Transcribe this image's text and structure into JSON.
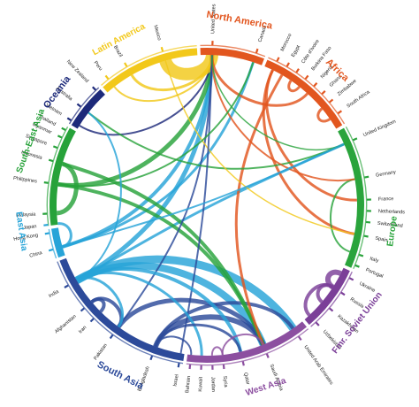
{
  "regions": [
    {
      "label": "North America",
      "color": "#e2561f",
      "start": 357,
      "end": 22,
      "label_angle": 10,
      "label_size": 11
    },
    {
      "label": "Africa",
      "color": "#e2561f",
      "start": 22,
      "end": 60,
      "label_angle": 44,
      "label_size": 11
    },
    {
      "label": "Europe",
      "color": "#2aa43c",
      "start": 60,
      "end": 114,
      "label_angle": 98,
      "label_size": 10
    },
    {
      "label": "Fmr. Soviet Union",
      "color": "#7b3f98",
      "start": 114,
      "end": 140,
      "label_angle": 128,
      "label_size": 10
    },
    {
      "label": "West Asia",
      "color": "#8c4fa0",
      "start": 140,
      "end": 188,
      "label_angle": 162,
      "label_size": 10
    },
    {
      "label": "South Asia",
      "color": "#2c4a9a",
      "start": 188,
      "end": 250,
      "label_angle": 207,
      "label_size": 11
    },
    {
      "label": "East Asia",
      "color": "#27a4d8",
      "start": 250,
      "end": 262,
      "label_angle": 262,
      "label_size": 10
    },
    {
      "label": "South-East Asia",
      "color": "#27a23a",
      "start": 262,
      "end": 300,
      "label_angle": 290,
      "label_size": 10
    },
    {
      "label": "Oceania",
      "color": "#1d2a7a",
      "start": 300,
      "end": 318,
      "label_angle": 307,
      "label_size": 11
    },
    {
      "label": "Latin America",
      "color": "#f2c81a",
      "start": 318,
      "end": 357,
      "label_angle": 332,
      "label_size": 10
    }
  ],
  "countries": [
    {
      "label": "United States",
      "angle": 2,
      "color": "#e2561f"
    },
    {
      "label": "Canada",
      "angle": 18,
      "color": "#e2561f"
    },
    {
      "label": "Morocco",
      "angle": 26,
      "color": "#e2561f"
    },
    {
      "label": "Egypt",
      "angle": 30,
      "color": "#e2561f"
    },
    {
      "label": "Côte d'Ivoire",
      "angle": 34,
      "color": "#e2561f"
    },
    {
      "label": "Burkina Faso",
      "angle": 38,
      "color": "#e2561f"
    },
    {
      "label": "Nigeria",
      "angle": 42,
      "color": "#e2561f"
    },
    {
      "label": "Ghana",
      "angle": 46,
      "color": "#e2561f"
    },
    {
      "label": "Zimbabwe",
      "angle": 50,
      "color": "#e2561f"
    },
    {
      "label": "South Africa",
      "angle": 55,
      "color": "#e2561f"
    },
    {
      "label": "United Kingdom",
      "angle": 66,
      "color": "#2aa43c"
    },
    {
      "label": "Germany",
      "angle": 80,
      "color": "#2aa43c"
    },
    {
      "label": "France",
      "angle": 88,
      "color": "#2aa43c"
    },
    {
      "label": "Netherlands",
      "angle": 92,
      "color": "#2aa43c"
    },
    {
      "label": "Switzerland",
      "angle": 96,
      "color": "#2aa43c"
    },
    {
      "label": "Spain",
      "angle": 101,
      "color": "#2aa43c"
    },
    {
      "label": "Italy",
      "angle": 108,
      "color": "#2aa43c"
    },
    {
      "label": "Portugal",
      "angle": 112,
      "color": "#2aa43c"
    },
    {
      "label": "Ukraine",
      "angle": 117,
      "color": "#7b3f98"
    },
    {
      "label": "Russia",
      "angle": 123,
      "color": "#7b3f98"
    },
    {
      "label": "Kazakhstan",
      "angle": 130,
      "color": "#7b3f98"
    },
    {
      "label": "Uzbekistan",
      "angle": 137,
      "color": "#7b3f98"
    },
    {
      "label": "United Arab Emirates",
      "angle": 145,
      "color": "#8c4fa0"
    },
    {
      "label": "Saudi Arabia",
      "angle": 158,
      "color": "#8c4fa0"
    },
    {
      "label": "Qatar",
      "angle": 167,
      "color": "#8c4fa0"
    },
    {
      "label": "Syria",
      "angle": 174,
      "color": "#8c4fa0"
    },
    {
      "label": "Jordan",
      "angle": 178,
      "color": "#8c4fa0"
    },
    {
      "label": "Kuwait",
      "angle": 182,
      "color": "#8c4fa0"
    },
    {
      "label": "Bahrain",
      "angle": 186,
      "color": "#8c4fa0"
    },
    {
      "label": "Israel",
      "angle": 190,
      "color": "#2c4a9a"
    },
    {
      "label": "Bangladesh",
      "angle": 200,
      "color": "#2c4a9a"
    },
    {
      "label": "Pakistan",
      "angle": 216,
      "color": "#2c4a9a"
    },
    {
      "label": "Iran",
      "angle": 225,
      "color": "#2c4a9a"
    },
    {
      "label": "Afghanistan",
      "angle": 230,
      "color": "#2c4a9a"
    },
    {
      "label": "India",
      "angle": 240,
      "color": "#2c4a9a"
    },
    {
      "label": "China",
      "angle": 254,
      "color": "#27a4d8"
    },
    {
      "label": "Hong Kong",
      "angle": 260,
      "color": "#27a4d8"
    },
    {
      "label": "Japan",
      "angle": 263,
      "color": "#27a4d8"
    },
    {
      "label": "Malaysia",
      "angle": 267,
      "color": "#27a23a"
    },
    {
      "label": "Philippines",
      "angle": 278,
      "color": "#27a23a"
    },
    {
      "label": "Indonesia",
      "angle": 286,
      "color": "#27a23a"
    },
    {
      "label": "Singapore",
      "angle": 291,
      "color": "#27a23a"
    },
    {
      "label": "Myanmar",
      "angle": 295,
      "color": "#27a23a"
    },
    {
      "label": "Thailand",
      "angle": 298,
      "color": "#27a23a"
    },
    {
      "label": "Vietnam",
      "angle": 302,
      "color": "#1d2a7a"
    },
    {
      "label": "Australia",
      "angle": 308,
      "color": "#1d2a7a"
    },
    {
      "label": "New Zealand",
      "angle": 316,
      "color": "#1d2a7a"
    },
    {
      "label": "Peru",
      "angle": 322,
      "color": "#f2c81a"
    },
    {
      "label": "Brazil",
      "angle": 330,
      "color": "#f2c81a"
    },
    {
      "label": "Mexico",
      "angle": 344,
      "color": "#f2c81a"
    }
  ],
  "flows": [
    {
      "from": 240,
      "to": 145,
      "width": 9,
      "color": "#27a4d8"
    },
    {
      "from": 240,
      "to": 158,
      "width": 8,
      "color": "#27a4d8"
    },
    {
      "from": 200,
      "to": 158,
      "width": 6,
      "color": "#2c4a9a"
    },
    {
      "from": 216,
      "to": 158,
      "width": 5,
      "color": "#2c4a9a"
    },
    {
      "from": 200,
      "to": 145,
      "width": 4,
      "color": "#2c4a9a"
    },
    {
      "from": 240,
      "to": 2,
      "width": 5,
      "color": "#27a4d8"
    },
    {
      "from": 240,
      "to": 66,
      "width": 3,
      "color": "#27a4d8"
    },
    {
      "from": 254,
      "to": 2,
      "width": 4,
      "color": "#27a4d8"
    },
    {
      "from": 254,
      "to": 18,
      "width": 3,
      "color": "#27a4d8"
    },
    {
      "from": 278,
      "to": 2,
      "width": 5,
      "color": "#27a23a"
    },
    {
      "from": 278,
      "to": 158,
      "width": 4,
      "color": "#27a23a"
    },
    {
      "from": 286,
      "to": 158,
      "width": 4,
      "color": "#27a23a"
    },
    {
      "from": 286,
      "to": 267,
      "width": 5,
      "color": "#27a23a"
    },
    {
      "from": 302,
      "to": 2,
      "width": 2,
      "color": "#1d2a7a"
    },
    {
      "from": 344,
      "to": 2,
      "width": 14,
      "color": "#f2c81a"
    },
    {
      "from": 330,
      "to": 2,
      "width": 3,
      "color": "#f2c81a"
    },
    {
      "from": 322,
      "to": 2,
      "width": 2,
      "color": "#f2c81a"
    },
    {
      "from": 42,
      "to": 2,
      "width": 3,
      "color": "#e2561f"
    },
    {
      "from": 26,
      "to": 101,
      "width": 3,
      "color": "#e2561f"
    },
    {
      "from": 26,
      "to": 88,
      "width": 3,
      "color": "#e2561f"
    },
    {
      "from": 30,
      "to": 158,
      "width": 3,
      "color": "#e2561f"
    },
    {
      "from": 50,
      "to": 55,
      "width": 3,
      "color": "#e2561f"
    },
    {
      "from": 38,
      "to": 34,
      "width": 3,
      "color": "#e2561f"
    },
    {
      "from": 123,
      "to": 117,
      "width": 6,
      "color": "#7b3f98"
    },
    {
      "from": 123,
      "to": 130,
      "width": 4,
      "color": "#7b3f98"
    },
    {
      "from": 137,
      "to": 123,
      "width": 4,
      "color": "#7b3f98"
    },
    {
      "from": 216,
      "to": 2,
      "width": 2,
      "color": "#2c4a9a"
    },
    {
      "from": 230,
      "to": 225,
      "width": 4,
      "color": "#2c4a9a"
    },
    {
      "from": 230,
      "to": 216,
      "width": 4,
      "color": "#2c4a9a"
    },
    {
      "from": 108,
      "to": 80,
      "width": 2,
      "color": "#2aa43c"
    },
    {
      "from": 66,
      "to": 308,
      "width": 2,
      "color": "#2aa43c"
    },
    {
      "from": 2,
      "to": 80,
      "width": 2,
      "color": "#e2561f"
    },
    {
      "from": 344,
      "to": 101,
      "width": 1.5,
      "color": "#f2c81a"
    },
    {
      "from": 190,
      "to": 2,
      "width": 2,
      "color": "#2c4a9a"
    },
    {
      "from": 254,
      "to": 263,
      "width": 3,
      "color": "#27a4d8"
    },
    {
      "from": 240,
      "to": 167,
      "width": 4,
      "color": "#27a4d8"
    },
    {
      "from": 240,
      "to": 182,
      "width": 3,
      "color": "#27a4d8"
    },
    {
      "from": 200,
      "to": 167,
      "width": 3,
      "color": "#2c4a9a"
    },
    {
      "from": 200,
      "to": 186,
      "width": 2,
      "color": "#2c4a9a"
    },
    {
      "from": 158,
      "to": 174,
      "width": 2,
      "color": "#8c4fa0"
    },
    {
      "from": 174,
      "to": 178,
      "width": 2,
      "color": "#8c4fa0"
    },
    {
      "from": 240,
      "to": 216,
      "width": 3,
      "color": "#27a4d8"
    },
    {
      "from": 66,
      "to": 2,
      "width": 1.5,
      "color": "#2aa43c"
    },
    {
      "from": 278,
      "to": 18,
      "width": 2,
      "color": "#27a23a"
    },
    {
      "from": 254,
      "to": 66,
      "width": 2,
      "color": "#27a4d8"
    },
    {
      "from": 240,
      "to": 308,
      "width": 2,
      "color": "#27a4d8"
    }
  ]
}
